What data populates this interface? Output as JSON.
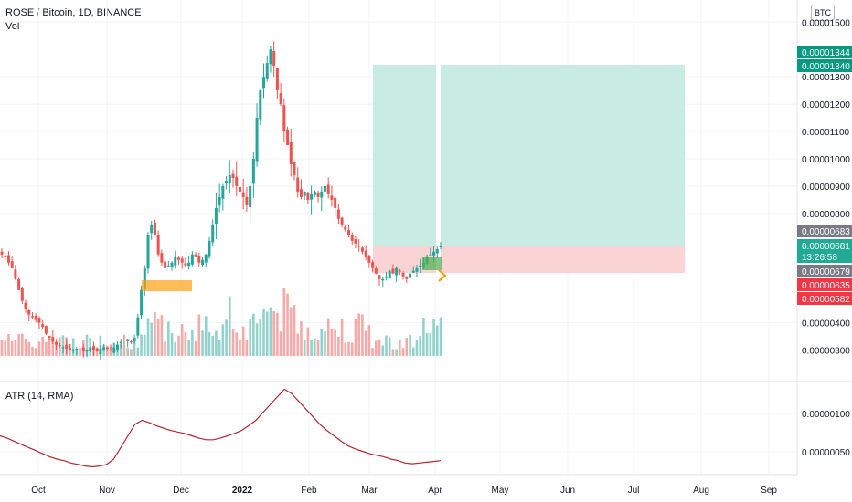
{
  "header": {
    "title": "ROSE / Bitcoin, 1D, BINANCE",
    "volume_label": "Vol",
    "currency": "BTC"
  },
  "atr_panel": {
    "label": "ATR (14, RMA)",
    "ticks": [
      "0.00000100",
      "0.00000050"
    ]
  },
  "price_axis": {
    "ticks": [
      {
        "label": "0.00001500",
        "value": 1500
      },
      {
        "label": "0.00001300",
        "value": 1300
      },
      {
        "label": "0.00001200",
        "value": 1200
      },
      {
        "label": "0.00001100",
        "value": 1100
      },
      {
        "label": "0.00001000",
        "value": 1000
      },
      {
        "label": "0.00000900",
        "value": 900
      },
      {
        "label": "0.00000800",
        "value": 800
      },
      {
        "label": "0.00000400",
        "value": 400
      },
      {
        "label": "0.00000300",
        "value": 300
      }
    ]
  },
  "price_tags": [
    {
      "label": "0.00001344",
      "value": 1344,
      "color": "#089981"
    },
    {
      "label": "0.00001340",
      "value": 1340,
      "color": "#089981"
    },
    {
      "label": "0.00000683",
      "value": 683,
      "color": "#787b86"
    },
    {
      "label": "0.00000681",
      "value": 681,
      "color": "#22ab94",
      "countdown": "13:26:58"
    },
    {
      "label": "0.00000679",
      "value": 679,
      "color": "#787b86"
    },
    {
      "label": "0.00000635",
      "value": 635,
      "color": "#f23645"
    },
    {
      "label": "0.00000582",
      "value": 582,
      "color": "#f23645"
    }
  ],
  "time_axis": {
    "labels": [
      {
        "label": "Oct",
        "bold": false
      },
      {
        "label": "Nov",
        "bold": false
      },
      {
        "label": "Dec",
        "bold": false
      },
      {
        "label": "2022",
        "bold": true
      },
      {
        "label": "Feb",
        "bold": false
      },
      {
        "label": "Mar",
        "bold": false
      },
      {
        "label": "Apr",
        "bold": false
      },
      {
        "label": "May",
        "bold": false
      },
      {
        "label": "Jun",
        "bold": false
      },
      {
        "label": "Jul",
        "bold": false
      },
      {
        "label": "Aug",
        "bold": false
      },
      {
        "label": "Sep",
        "bold": false
      }
    ]
  },
  "colors": {
    "up": "#26a69a",
    "down": "#ef5350",
    "vol_up": "#92d2cc",
    "vol_down": "#f7a9a7",
    "target_zone": "#c8ebe4",
    "stop_zone": "#fad4d4",
    "atr_line": "#b22833",
    "grid": "#f0f3fa",
    "arrow": "#ff9800"
  },
  "chart_data": {
    "type": "candlestick",
    "unit": "satoshi",
    "closes_approx": [
      650,
      640,
      620,
      600,
      560,
      520,
      480,
      450,
      430,
      420,
      410,
      400,
      385,
      360,
      345,
      330,
      320,
      315,
      310,
      305,
      300,
      300,
      305,
      300,
      295,
      300,
      310,
      300,
      295,
      305,
      310,
      305,
      300,
      310,
      320,
      330,
      335,
      340,
      330,
      345,
      420,
      520,
      600,
      720,
      760,
      720,
      650,
      620,
      600,
      610,
      620,
      640,
      630,
      620,
      610,
      620,
      650,
      640,
      620,
      630,
      650,
      700,
      760,
      820,
      860,
      900,
      920,
      940,
      930,
      900,
      880,
      860,
      830,
      900,
      1000,
      1150,
      1250,
      1300,
      1350,
      1400,
      1340,
      1250,
      1200,
      1100,
      1050,
      980,
      940,
      880,
      860,
      880,
      850,
      870,
      880,
      860,
      880,
      900,
      870,
      850,
      820,
      780,
      760,
      740,
      720,
      700,
      690,
      680,
      660,
      640,
      620,
      600,
      580,
      560,
      560,
      570,
      590,
      580,
      600,
      590,
      570,
      560,
      580,
      590,
      600,
      610,
      620,
      640,
      650,
      660,
      670,
      681
    ],
    "risk_reward": {
      "entry": 681,
      "target": 1344,
      "stop": 582
    },
    "atr": {
      "label": "ATR (14, RMA)",
      "ylim": [
        2.5e-07,
        1.45e-06
      ],
      "values_approx": [
        7.5e-07,
        7.2e-07,
        6.8e-07,
        6.4e-07,
        6e-07,
        5.6e-07,
        5.2e-07,
        4.8e-07,
        4.5e-07,
        4.3e-07,
        4e-07,
        3.8e-07,
        3.6e-07,
        3.5e-07,
        3.6e-07,
        3.8e-07,
        4.5e-07,
        6e-07,
        7.5e-07,
        9e-07,
        9.5e-07,
        9.2e-07,
        8.8e-07,
        8.5e-07,
        8.2e-07,
        8e-07,
        7.8e-07,
        7.5e-07,
        7.2e-07,
        7e-07,
        7e-07,
        7.2e-07,
        7.5e-07,
        7.8e-07,
        8.2e-07,
        8.8e-07,
        9.5e-07,
        1.05e-06,
        1.15e-06,
        1.25e-06,
        1.35e-06,
        1.3e-06,
        1.2e-06,
        1.1e-06,
        1e-06,
        9e-07,
        8.2e-07,
        7.5e-07,
        6.8e-07,
        6.2e-07,
        5.8e-07,
        5.5e-07,
        5.2e-07,
        5e-07,
        4.8e-07,
        4.5e-07,
        4.3e-07,
        4e-07,
        3.9e-07,
        4e-07,
        4.1e-07,
        4.2e-07,
        4.3e-07
      ]
    }
  }
}
